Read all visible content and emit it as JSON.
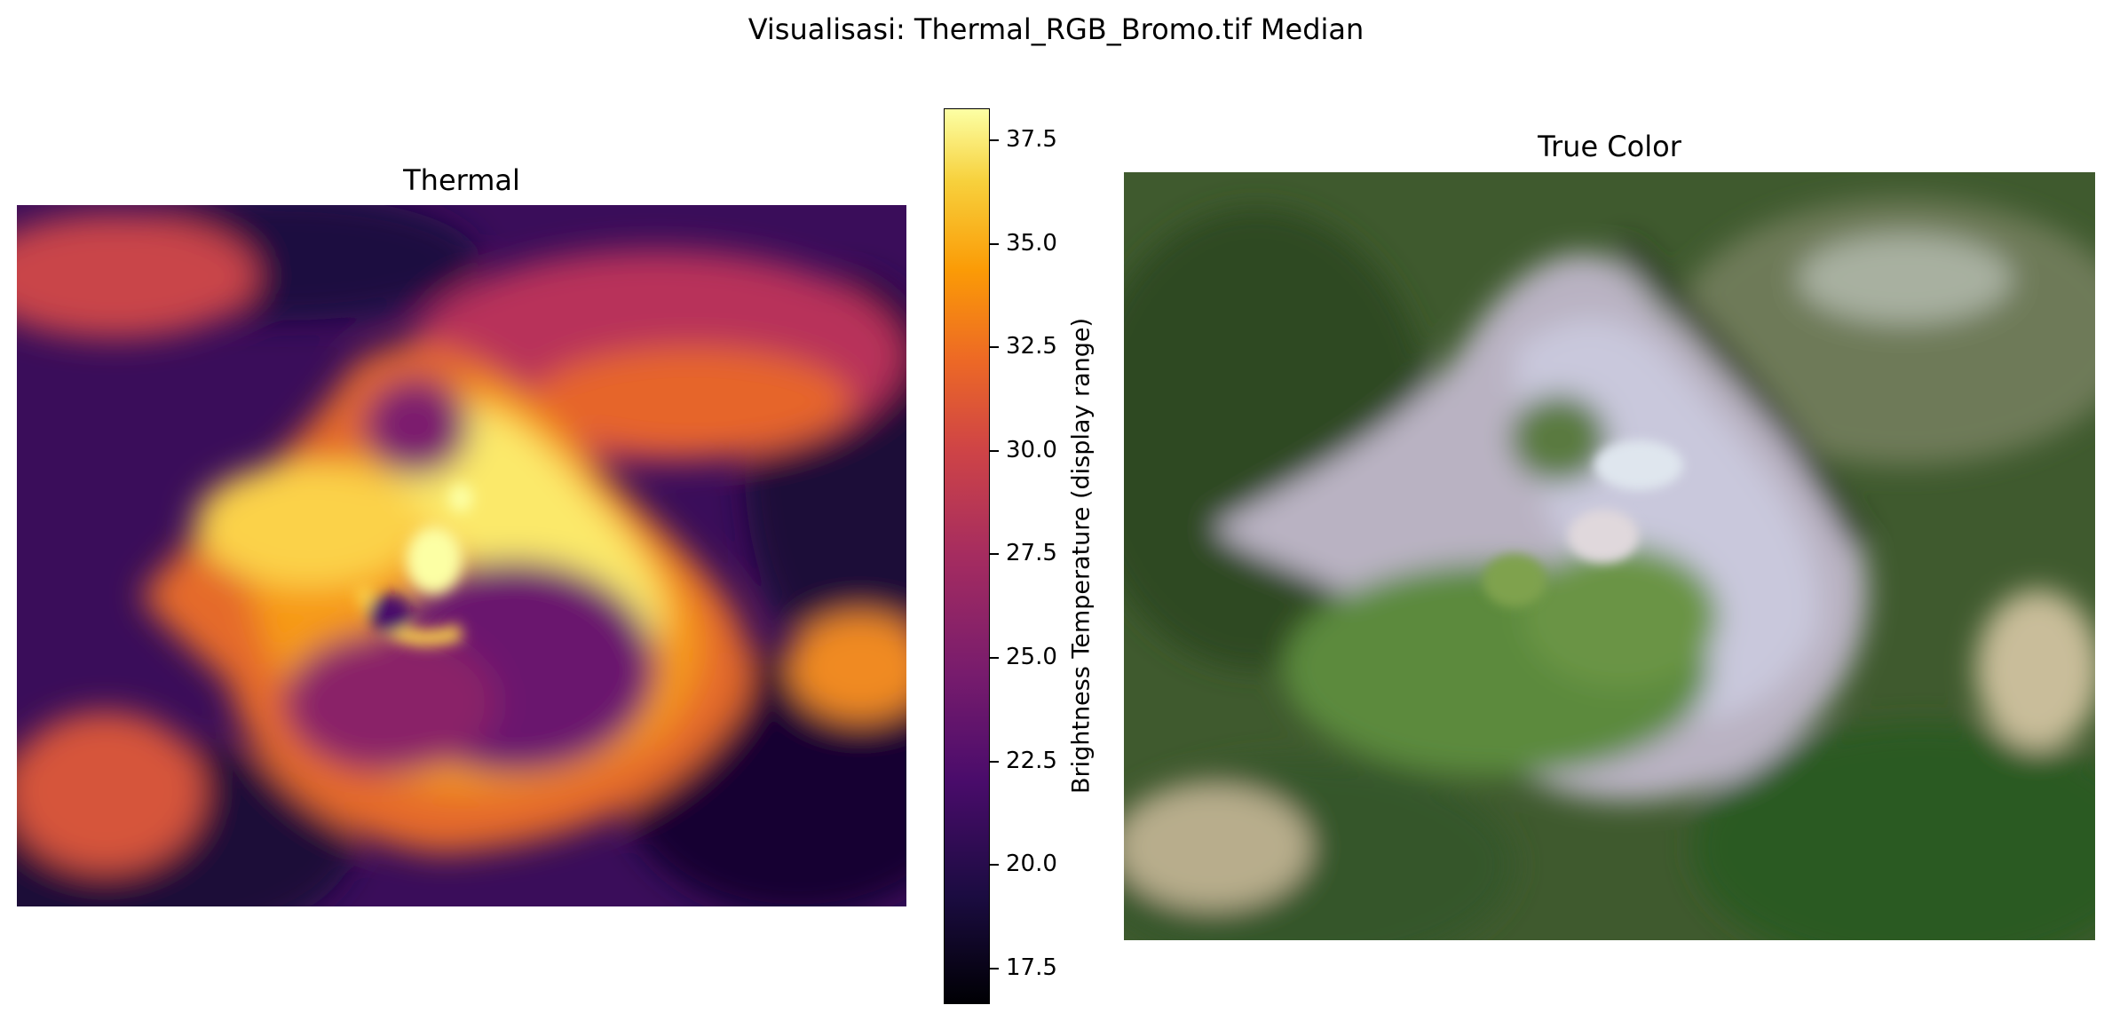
{
  "figure": {
    "suptitle": "Visualisasi: Thermal_RGB_Bromo.tif Median"
  },
  "thermal": {
    "title": "Thermal",
    "colormap": "inferno"
  },
  "true_color": {
    "title": "True Color"
  },
  "colorbar": {
    "label": "Brightness Temperature (display range)",
    "range": [
      16.6,
      38.2
    ],
    "ticks": [
      "37.5",
      "35.0",
      "32.5",
      "30.0",
      "27.5",
      "25.0",
      "22.5",
      "20.0",
      "17.5"
    ]
  }
}
